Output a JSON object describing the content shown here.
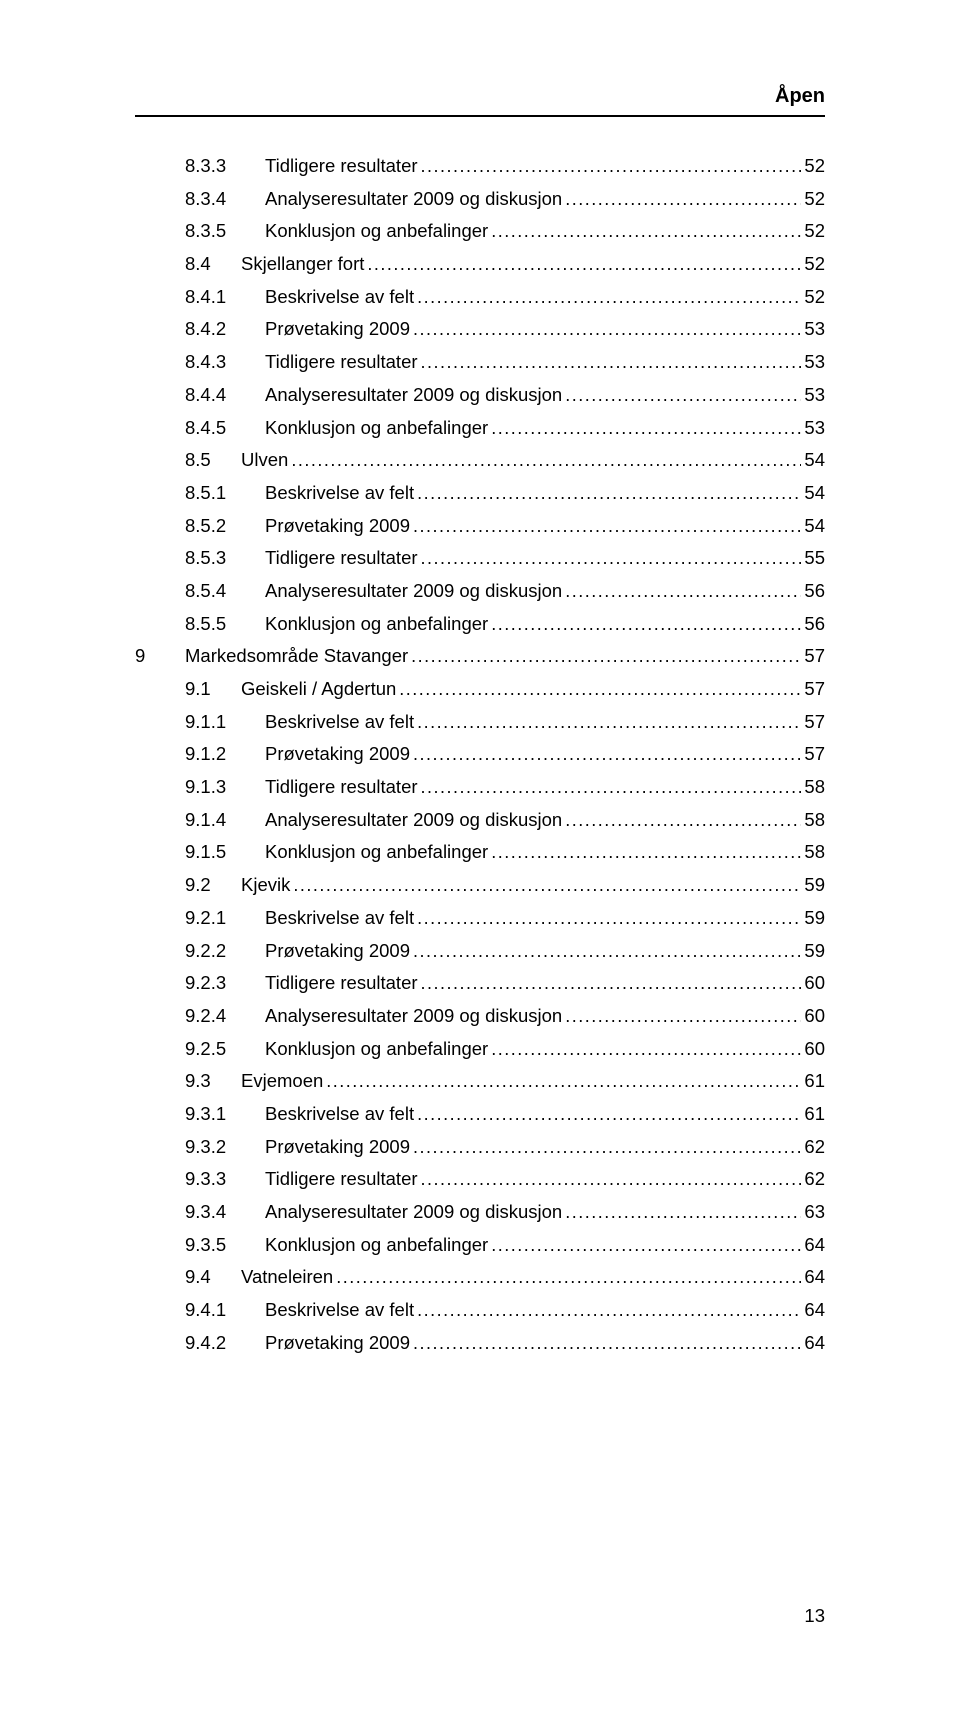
{
  "header": {
    "label": "Åpen"
  },
  "footer": {
    "page": "13"
  },
  "leader_char": ".",
  "toc": [
    {
      "level": 3,
      "num": "8.3.3",
      "title": "Tidligere resultater",
      "page": "52"
    },
    {
      "level": 3,
      "num": "8.3.4",
      "title": "Analyseresultater 2009 og diskusjon",
      "page": "52"
    },
    {
      "level": 3,
      "num": "8.3.5",
      "title": "Konklusjon og anbefalinger",
      "page": "52"
    },
    {
      "level": 2,
      "num": "8.4",
      "title": "Skjellanger fort",
      "page": "52"
    },
    {
      "level": 3,
      "num": "8.4.1",
      "title": "Beskrivelse av felt",
      "page": "52"
    },
    {
      "level": 3,
      "num": "8.4.2",
      "title": "Prøvetaking 2009",
      "page": "53"
    },
    {
      "level": 3,
      "num": "8.4.3",
      "title": "Tidligere resultater",
      "page": "53"
    },
    {
      "level": 3,
      "num": "8.4.4",
      "title": "Analyseresultater 2009 og diskusjon",
      "page": "53"
    },
    {
      "level": 3,
      "num": "8.4.5",
      "title": "Konklusjon og anbefalinger",
      "page": "53"
    },
    {
      "level": 2,
      "num": "8.5",
      "title": "Ulven",
      "page": "54"
    },
    {
      "level": 3,
      "num": "8.5.1",
      "title": "Beskrivelse av felt",
      "page": "54"
    },
    {
      "level": 3,
      "num": "8.5.2",
      "title": "Prøvetaking 2009",
      "page": "54"
    },
    {
      "level": 3,
      "num": "8.5.3",
      "title": "Tidligere resultater",
      "page": "55"
    },
    {
      "level": 3,
      "num": "8.5.4",
      "title": "Analyseresultater 2009 og diskusjon",
      "page": "56"
    },
    {
      "level": 3,
      "num": "8.5.5",
      "title": "Konklusjon og anbefalinger",
      "page": "56"
    },
    {
      "level": 1,
      "num": "9",
      "title": "Markedsområde Stavanger",
      "page": "57"
    },
    {
      "level": 2,
      "num": "9.1",
      "title": "Geiskeli / Agdertun",
      "page": "57"
    },
    {
      "level": 3,
      "num": "9.1.1",
      "title": "Beskrivelse av felt",
      "page": "57"
    },
    {
      "level": 3,
      "num": "9.1.2",
      "title": "Prøvetaking 2009",
      "page": "57"
    },
    {
      "level": 3,
      "num": "9.1.3",
      "title": "Tidligere resultater",
      "page": "58"
    },
    {
      "level": 3,
      "num": "9.1.4",
      "title": "Analyseresultater 2009 og diskusjon",
      "page": "58"
    },
    {
      "level": 3,
      "num": "9.1.5",
      "title": "Konklusjon og anbefalinger",
      "page": "58"
    },
    {
      "level": 2,
      "num": "9.2",
      "title": "Kjevik",
      "page": "59"
    },
    {
      "level": 3,
      "num": "9.2.1",
      "title": "Beskrivelse av felt",
      "page": "59"
    },
    {
      "level": 3,
      "num": "9.2.2",
      "title": "Prøvetaking 2009",
      "page": "59"
    },
    {
      "level": 3,
      "num": "9.2.3",
      "title": "Tidligere resultater",
      "page": "60"
    },
    {
      "level": 3,
      "num": "9.2.4",
      "title": "Analyseresultater 2009 og diskusjon",
      "page": "60"
    },
    {
      "level": 3,
      "num": "9.2.5",
      "title": "Konklusjon og anbefalinger",
      "page": "60"
    },
    {
      "level": 2,
      "num": "9.3",
      "title": "Evjemoen",
      "page": "61"
    },
    {
      "level": 3,
      "num": "9.3.1",
      "title": "Beskrivelse av felt",
      "page": "61"
    },
    {
      "level": 3,
      "num": "9.3.2",
      "title": "Prøvetaking 2009",
      "page": "62"
    },
    {
      "level": 3,
      "num": "9.3.3",
      "title": "Tidligere resultater",
      "page": "62"
    },
    {
      "level": 3,
      "num": "9.3.4",
      "title": "Analyseresultater 2009 og diskusjon",
      "page": "63"
    },
    {
      "level": 3,
      "num": "9.3.5",
      "title": "Konklusjon og anbefalinger",
      "page": "64"
    },
    {
      "level": 2,
      "num": "9.4",
      "title": "Vatneleiren",
      "page": "64"
    },
    {
      "level": 3,
      "num": "9.4.1",
      "title": "Beskrivelse av felt",
      "page": "64"
    },
    {
      "level": 3,
      "num": "9.4.2",
      "title": "Prøvetaking 2009",
      "page": "64"
    }
  ]
}
